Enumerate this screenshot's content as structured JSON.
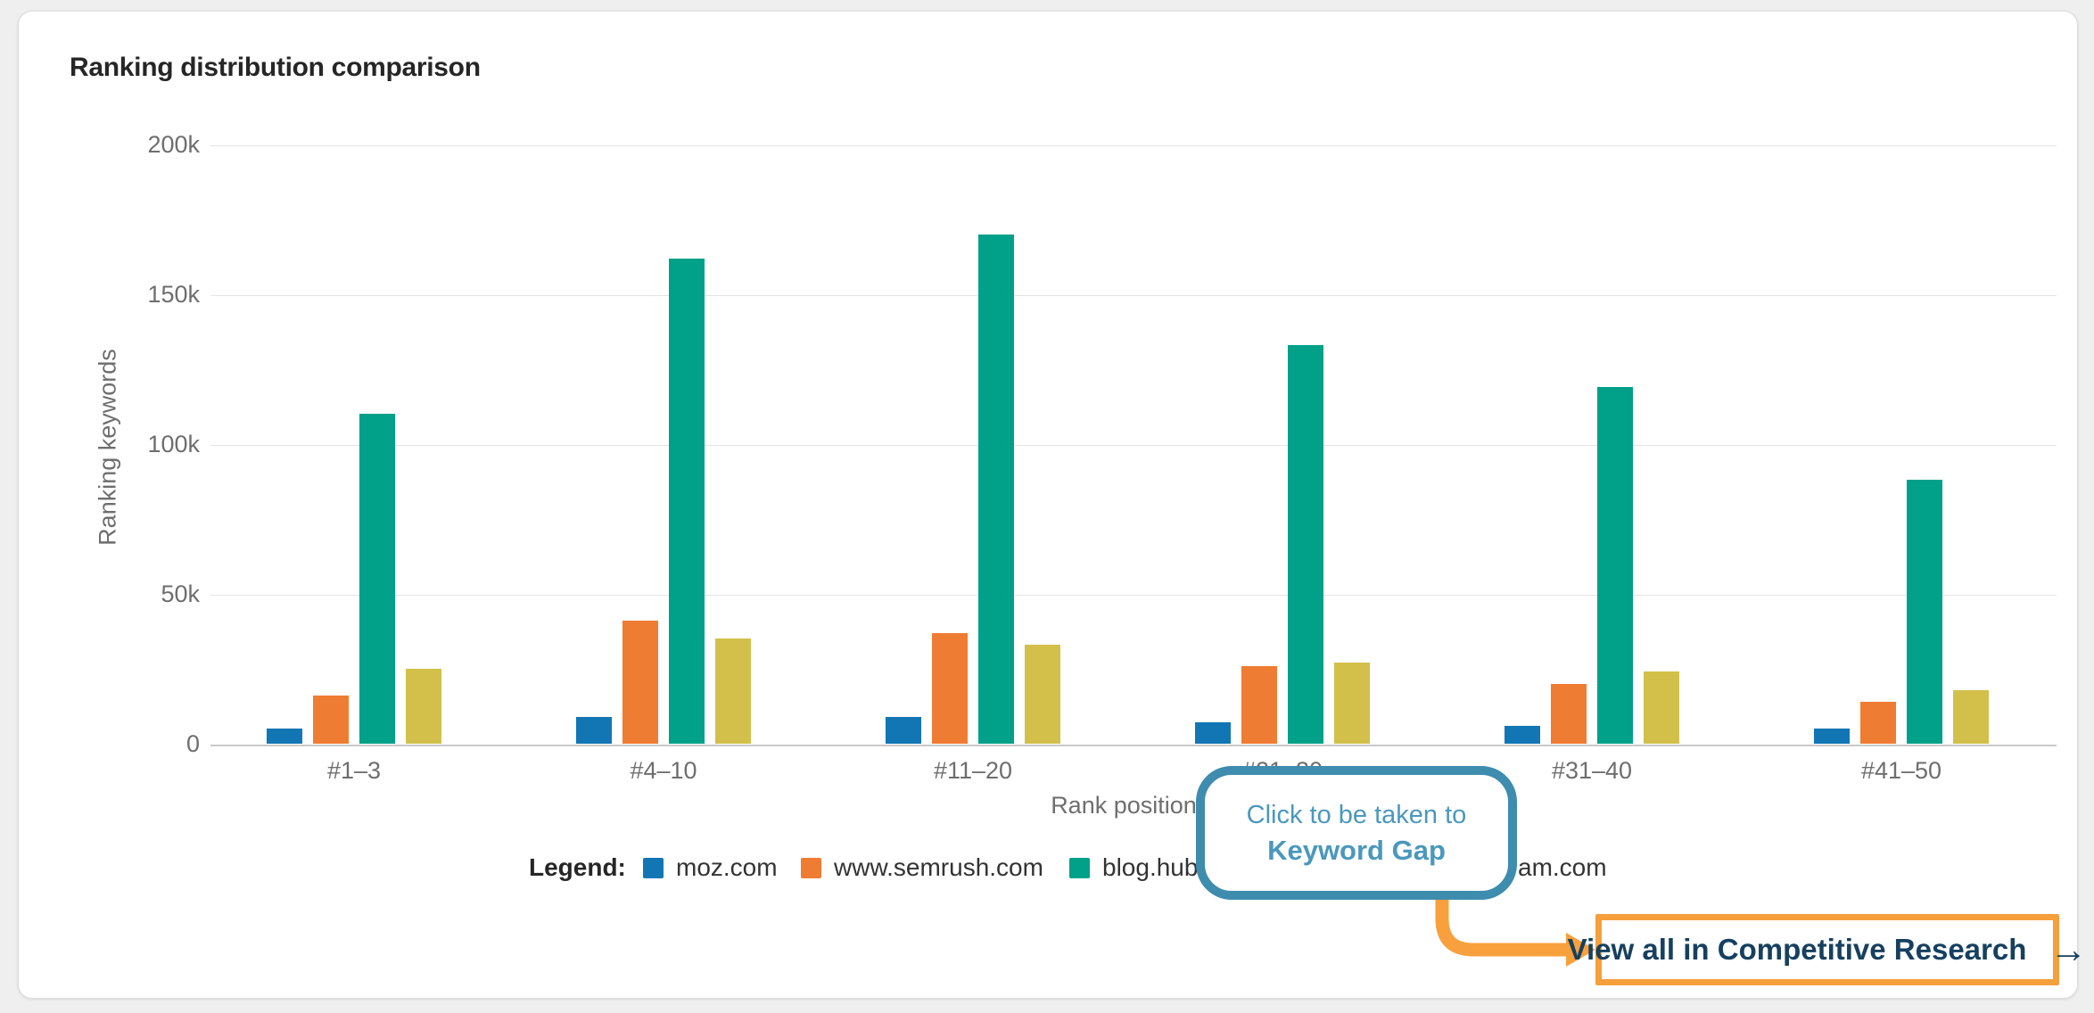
{
  "page": {
    "title": "Ranking distribution comparison"
  },
  "chart_data": {
    "type": "bar",
    "title": "Ranking distribution comparison",
    "xlabel": "Rank position",
    "ylabel": "Ranking keywords",
    "categories": [
      "#1–3",
      "#4–10",
      "#11–20",
      "#21–30",
      "#31–40",
      "#41–50"
    ],
    "y_ticks": [
      {
        "value_k": 0,
        "label": "0"
      },
      {
        "value_k": 50,
        "label": "50k"
      },
      {
        "value_k": 100,
        "label": "100k"
      },
      {
        "value_k": 150,
        "label": "150k"
      },
      {
        "value_k": 200,
        "label": "200k"
      }
    ],
    "ylim_k": [
      0,
      200
    ],
    "grid": true,
    "legend_position": "bottom",
    "unit": "thousand ranking keywords",
    "series": [
      {
        "name": "moz.com",
        "color": "#1276b4",
        "values_k": [
          5,
          9,
          9,
          7,
          6,
          5
        ]
      },
      {
        "name": "www.semrush.com",
        "color": "#ef7c33",
        "values_k": [
          16,
          41,
          37,
          26,
          20,
          14
        ]
      },
      {
        "name": "blog.hub",
        "color": "#00a089",
        "values_k": [
          110,
          162,
          170,
          133,
          119,
          88
        ]
      },
      {
        "name": "am.com",
        "color": "#d2c04b",
        "values_k": [
          25,
          35,
          33,
          27,
          24,
          18
        ]
      }
    ]
  },
  "legend": {
    "label": "Legend:",
    "items": [
      {
        "label": "moz.com",
        "color": "#1276b4",
        "show_swatch": true
      },
      {
        "label": "www.semrush.com",
        "color": "#ef7c33",
        "show_swatch": true
      },
      {
        "label": "blog.hub",
        "color": "#00a089",
        "show_swatch": true
      },
      {
        "label": "am.com",
        "color": "#d2c04b",
        "show_swatch": false
      }
    ]
  },
  "callout": {
    "line1": "Click to be taken to",
    "line2": "Keyword Gap",
    "border_color": "#3e8cae",
    "text_color": "#4a98bc"
  },
  "cta_button": {
    "label": "View all in Competitive Research",
    "arrow_icon": "→",
    "border_color": "#f59f3d",
    "text_color": "#16405f"
  },
  "connector_arrow": {
    "color": "#f8a03d"
  }
}
